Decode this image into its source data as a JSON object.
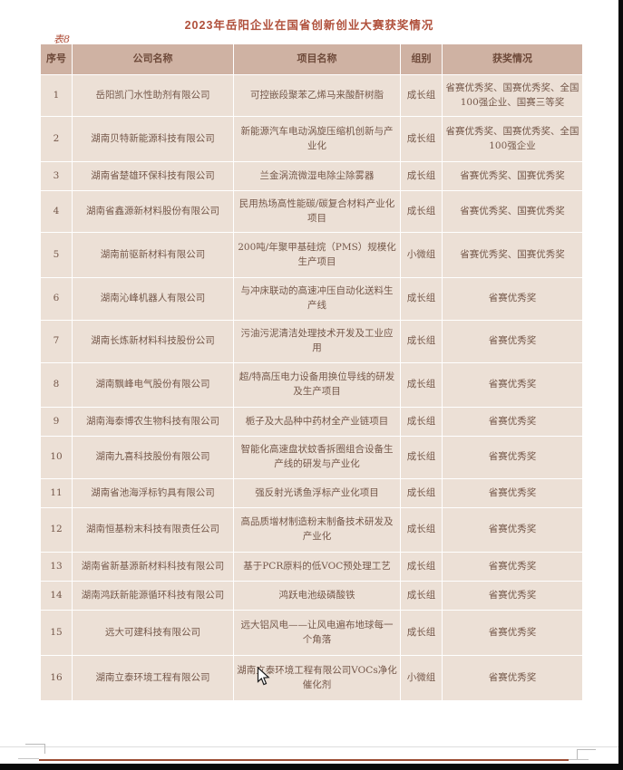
{
  "page": {
    "title": "2023年岳阳企业在国省创新创业大赛获奖情况",
    "table_caption": "表8"
  },
  "table": {
    "columns": [
      "序号",
      "公司名称",
      "项目名称",
      "组别",
      "获奖情况"
    ],
    "rows": [
      {
        "no": "1",
        "company": "岳阳凯门水性助剂有限公司",
        "project": "可控嵌段聚苯乙烯马来酸酐树脂",
        "group": "成长组",
        "awards": "省赛优秀奖、国赛优秀奖、全国100强企业、国赛三等奖"
      },
      {
        "no": "2",
        "company": "湖南贝特新能源科技有限公司",
        "project": "新能源汽车电动涡旋压缩机创新与产业化",
        "group": "成长组",
        "awards": "省赛优秀奖、国赛优秀奖、全国100强企业"
      },
      {
        "no": "3",
        "company": "湖南省楚雄环保科技有限公司",
        "project": "兰金涡流微湿电除尘除雾器",
        "group": "成长组",
        "awards": "省赛优秀奖、国赛优秀奖"
      },
      {
        "no": "4",
        "company": "湖南省鑫源新材料股份有限公司",
        "project": "民用热场高性能碳/碳复合材料产业化项目",
        "group": "成长组",
        "awards": "省赛优秀奖、国赛优秀奖"
      },
      {
        "no": "5",
        "company": "湖南前驱新材料有限公司",
        "project": "200吨/年聚甲基硅烷（PMS）规模化生产项目",
        "group": "小微组",
        "awards": "省赛优秀奖、国赛优秀奖"
      },
      {
        "no": "6",
        "company": "湖南沁峰机器人有限公司",
        "project": "与冲床联动的高速冲压自动化送料生产线",
        "group": "成长组",
        "awards": "省赛优秀奖"
      },
      {
        "no": "7",
        "company": "湖南长炼新材料科技股份公司",
        "project": "污油污泥清洁处理技术开发及工业应用",
        "group": "成长组",
        "awards": "省赛优秀奖"
      },
      {
        "no": "8",
        "company": "湖南飘峰电气股份有限公司",
        "project": "超/特高压电力设备用换位导线的研发及生产项目",
        "group": "成长组",
        "awards": "省赛优秀奖"
      },
      {
        "no": "9",
        "company": "湖南海泰博农生物科技有限公司",
        "project": "栀子及大品种中药材全产业链项目",
        "group": "成长组",
        "awards": "省赛优秀奖"
      },
      {
        "no": "10",
        "company": "湖南九喜科技股份有限公司",
        "project": "智能化高速盘状蚊香拆圈组合设备生产线的研发与产业化",
        "group": "成长组",
        "awards": "省赛优秀奖"
      },
      {
        "no": "11",
        "company": "湖南省池海浮标钓具有限公司",
        "project": "强反射光诱鱼浮标产业化项目",
        "group": "成长组",
        "awards": "省赛优秀奖"
      },
      {
        "no": "12",
        "company": "湖南恒基粉末科技有限责任公司",
        "project": "高品质增材制造粉末制备技术研发及产业化",
        "group": "成长组",
        "awards": "省赛优秀奖"
      },
      {
        "no": "13",
        "company": "湖南省新基源新材料科技有限公司",
        "project": "基于PCR原料的低VOC预处理工艺",
        "group": "成长组",
        "awards": "省赛优秀奖"
      },
      {
        "no": "14",
        "company": "湖南鸿跃新能源循环科技有限公司",
        "project": "鸿跃电池级磷酸铁",
        "group": "成长组",
        "awards": "省赛优秀奖"
      },
      {
        "no": "15",
        "company": "远大可建科技有限公司",
        "project": "远大铝风电——让风电遍布地球每一个角落",
        "group": "成长组",
        "awards": "省赛优秀奖"
      },
      {
        "no": "16",
        "company": "湖南立泰环境工程有限公司",
        "project": "湖南立泰环境工程有限公司VOCs净化催化剂",
        "group": "小微组",
        "awards": "省赛优秀奖"
      }
    ]
  },
  "cursor": {
    "icon": "arrow-pointer"
  },
  "colors": {
    "title_text": "#b0503b",
    "header_bg": "#cfb2a3",
    "header_text": "#6e4a3a",
    "row_bg": "#ece0d6",
    "cell_text": "#75584a",
    "page_border_line": "#9c4c33"
  }
}
